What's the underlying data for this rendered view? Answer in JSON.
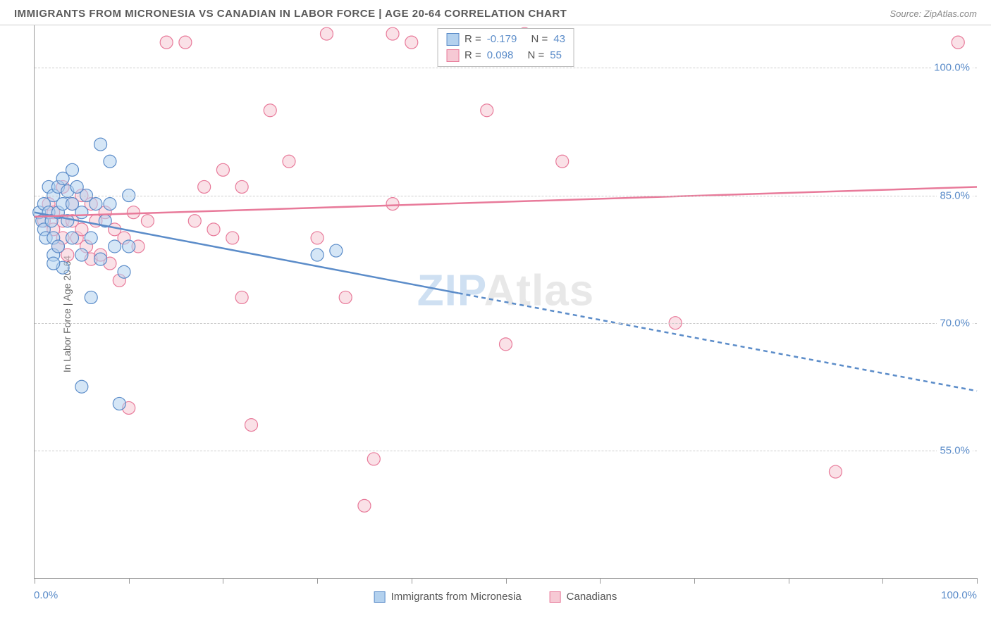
{
  "header": {
    "title": "IMMIGRANTS FROM MICRONESIA VS CANADIAN IN LABOR FORCE | AGE 20-64 CORRELATION CHART",
    "source_label": "Source: ",
    "source_name": "ZipAtlas.com"
  },
  "watermark": {
    "prefix": "ZIP",
    "suffix": "Atlas"
  },
  "chart": {
    "type": "scatter",
    "ylabel": "In Labor Force | Age 20-64",
    "xlim": [
      0,
      100
    ],
    "ylim": [
      40,
      105
    ],
    "xtick_positions": [
      0,
      10,
      20,
      30,
      40,
      50,
      60,
      70,
      80,
      90,
      100
    ],
    "x_start_label": "0.0%",
    "x_end_label": "100.0%",
    "ygrid": [
      {
        "value": 55,
        "label": "55.0%"
      },
      {
        "value": 70,
        "label": "70.0%"
      },
      {
        "value": 85,
        "label": "85.0%"
      },
      {
        "value": 100,
        "label": "100.0%"
      }
    ],
    "colors": {
      "series_a_fill": "#b3d1ee",
      "series_a_stroke": "#5b8cc9",
      "series_b_fill": "#f6c9d4",
      "series_b_stroke": "#e87a9a",
      "grid": "#cccccc",
      "axis": "#999999",
      "tick_text": "#5b8cc9"
    },
    "marker_radius": 9,
    "marker_opacity": 0.55,
    "trend_line_width": 2.5,
    "series_a": {
      "name": "Immigrants from Micronesia",
      "R_label": "R = ",
      "R": "-0.179",
      "N_label": "N = ",
      "N": "43",
      "trend": {
        "x1": 0,
        "y1": 83,
        "x2_solid": 45,
        "y2_solid": 73.5,
        "x2": 100,
        "y2": 62
      },
      "points": [
        [
          0.5,
          83
        ],
        [
          0.8,
          82
        ],
        [
          1,
          84
        ],
        [
          1,
          81
        ],
        [
          1.2,
          80
        ],
        [
          1.5,
          86
        ],
        [
          1.5,
          83
        ],
        [
          1.8,
          82
        ],
        [
          2,
          85
        ],
        [
          2,
          80
        ],
        [
          2,
          78
        ],
        [
          2.5,
          86
        ],
        [
          2.5,
          83
        ],
        [
          2.5,
          79
        ],
        [
          3,
          87
        ],
        [
          3,
          84
        ],
        [
          3,
          76.5
        ],
        [
          3.5,
          85.5
        ],
        [
          3.5,
          82
        ],
        [
          4,
          88
        ],
        [
          4,
          84
        ],
        [
          4,
          80
        ],
        [
          4.5,
          86
        ],
        [
          5,
          83
        ],
        [
          5,
          78
        ],
        [
          5.5,
          85
        ],
        [
          6,
          73
        ],
        [
          6,
          80
        ],
        [
          6.5,
          84
        ],
        [
          7,
          91
        ],
        [
          7,
          77.5
        ],
        [
          7.5,
          82
        ],
        [
          8,
          89
        ],
        [
          8,
          84
        ],
        [
          8.5,
          79
        ],
        [
          9,
          60.5
        ],
        [
          9.5,
          76
        ],
        [
          10,
          85
        ],
        [
          10,
          79
        ],
        [
          5,
          62.5
        ],
        [
          30,
          78
        ],
        [
          32,
          78.5
        ],
        [
          2,
          77
        ]
      ]
    },
    "series_b": {
      "name": "Canadians",
      "R_label": "R = ",
      "R": "0.098",
      "N_label": "N = ",
      "N": "55",
      "trend": {
        "x1": 0,
        "y1": 82.5,
        "x2": 100,
        "y2": 86
      },
      "points": [
        [
          1,
          82
        ],
        [
          1.5,
          84
        ],
        [
          2,
          83
        ],
        [
          2,
          81
        ],
        [
          2.5,
          79
        ],
        [
          3,
          86
        ],
        [
          3,
          82
        ],
        [
          3,
          80
        ],
        [
          3.5,
          78
        ],
        [
          4,
          84
        ],
        [
          4,
          82
        ],
        [
          4.5,
          80
        ],
        [
          5,
          85
        ],
        [
          5,
          81
        ],
        [
          5.5,
          79
        ],
        [
          6,
          84
        ],
        [
          6,
          77.5
        ],
        [
          6.5,
          82
        ],
        [
          7,
          78
        ],
        [
          7.5,
          83
        ],
        [
          8,
          77
        ],
        [
          8.5,
          81
        ],
        [
          9,
          75
        ],
        [
          9.5,
          80
        ],
        [
          10,
          60
        ],
        [
          10.5,
          83
        ],
        [
          11,
          79
        ],
        [
          12,
          82
        ],
        [
          14,
          103
        ],
        [
          16,
          103
        ],
        [
          17,
          82
        ],
        [
          18,
          86
        ],
        [
          19,
          81
        ],
        [
          20,
          88
        ],
        [
          21,
          80
        ],
        [
          22,
          73
        ],
        [
          22,
          86
        ],
        [
          23,
          58
        ],
        [
          25,
          95
        ],
        [
          27,
          89
        ],
        [
          30,
          80
        ],
        [
          31,
          104
        ],
        [
          33,
          73
        ],
        [
          35,
          48.5
        ],
        [
          36,
          54
        ],
        [
          38,
          104
        ],
        [
          38,
          84
        ],
        [
          40,
          103
        ],
        [
          48,
          95
        ],
        [
          50,
          67.5
        ],
        [
          52,
          104
        ],
        [
          56,
          89
        ],
        [
          68,
          70
        ],
        [
          85,
          52.5
        ],
        [
          98,
          103
        ]
      ]
    }
  }
}
